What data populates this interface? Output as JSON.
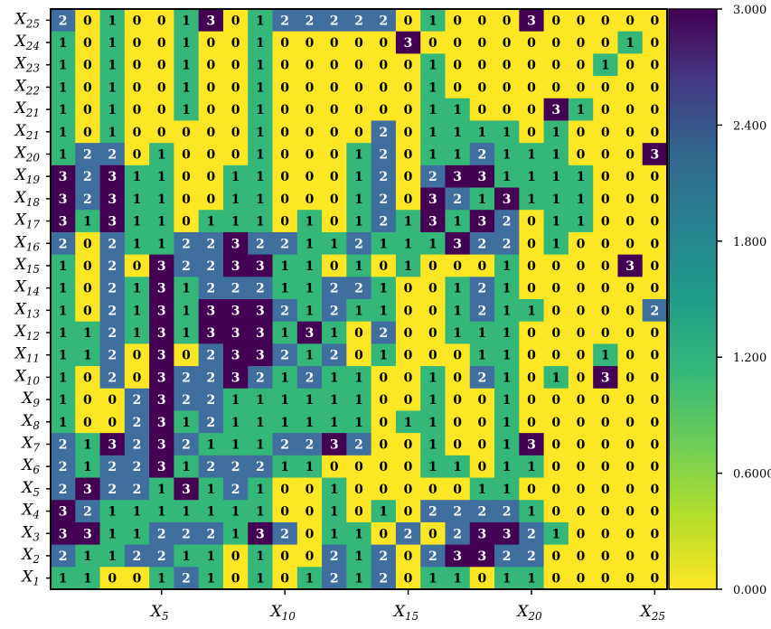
{
  "chart_data": {
    "type": "heatmap",
    "title": "",
    "xlabel": "",
    "ylabel": "",
    "rows_top_to_bottom": [
      "X25",
      "X24",
      "X23",
      "X22",
      "X21",
      "X21",
      "X20",
      "X19",
      "X18",
      "X17",
      "X16",
      "X15",
      "X14",
      "X13",
      "X12",
      "X11",
      "X10",
      "X9",
      "X8",
      "X7",
      "X6",
      "X5",
      "X4",
      "X3",
      "X2",
      "X1"
    ],
    "x_ticks": [
      {
        "col": 5,
        "label": "X5"
      },
      {
        "col": 10,
        "label": "X10"
      },
      {
        "col": 15,
        "label": "X15"
      },
      {
        "col": 20,
        "label": "X20"
      },
      {
        "col": 25,
        "label": "X25"
      }
    ],
    "values": [
      [
        2,
        0,
        1,
        0,
        0,
        1,
        3,
        0,
        1,
        2,
        2,
        2,
        2,
        2,
        0,
        1,
        0,
        0,
        0,
        3,
        0,
        0,
        0,
        0,
        0
      ],
      [
        1,
        0,
        1,
        0,
        0,
        1,
        0,
        0,
        1,
        0,
        0,
        0,
        0,
        0,
        3,
        0,
        0,
        0,
        0,
        0,
        0,
        0,
        0,
        1,
        0
      ],
      [
        1,
        0,
        1,
        0,
        0,
        1,
        0,
        0,
        1,
        0,
        0,
        0,
        0,
        0,
        0,
        1,
        0,
        0,
        0,
        0,
        0,
        0,
        1,
        0,
        0
      ],
      [
        1,
        0,
        1,
        0,
        0,
        1,
        0,
        0,
        1,
        0,
        0,
        0,
        0,
        0,
        0,
        1,
        0,
        0,
        0,
        0,
        0,
        0,
        0,
        0,
        0
      ],
      [
        1,
        0,
        1,
        0,
        0,
        1,
        0,
        0,
        1,
        0,
        0,
        0,
        0,
        0,
        0,
        1,
        1,
        0,
        0,
        0,
        3,
        1,
        0,
        0,
        0
      ],
      [
        1,
        0,
        1,
        0,
        0,
        0,
        0,
        0,
        1,
        0,
        0,
        0,
        0,
        2,
        0,
        1,
        1,
        1,
        1,
        0,
        1,
        0,
        0,
        0,
        0
      ],
      [
        1,
        2,
        2,
        0,
        1,
        0,
        0,
        0,
        1,
        0,
        0,
        0,
        1,
        2,
        0,
        1,
        1,
        2,
        1,
        1,
        1,
        0,
        0,
        0,
        3
      ],
      [
        3,
        2,
        3,
        1,
        1,
        0,
        0,
        1,
        1,
        0,
        0,
        0,
        1,
        2,
        0,
        2,
        3,
        3,
        1,
        1,
        1,
        1,
        0,
        0,
        0
      ],
      [
        3,
        2,
        3,
        1,
        1,
        0,
        0,
        1,
        1,
        0,
        0,
        0,
        1,
        2,
        0,
        3,
        2,
        1,
        3,
        1,
        1,
        1,
        0,
        0,
        0
      ],
      [
        3,
        1,
        3,
        1,
        1,
        0,
        1,
        1,
        1,
        0,
        1,
        0,
        1,
        2,
        1,
        3,
        1,
        3,
        2,
        0,
        1,
        1,
        0,
        0,
        0
      ],
      [
        2,
        0,
        2,
        1,
        1,
        2,
        2,
        3,
        2,
        2,
        1,
        1,
        2,
        1,
        1,
        1,
        3,
        2,
        2,
        0,
        1,
        0,
        0,
        0,
        0
      ],
      [
        1,
        0,
        2,
        0,
        3,
        2,
        2,
        3,
        3,
        1,
        1,
        0,
        1,
        0,
        1,
        0,
        0,
        0,
        1,
        0,
        0,
        0,
        0,
        3,
        0
      ],
      [
        1,
        0,
        2,
        1,
        3,
        1,
        2,
        2,
        2,
        1,
        1,
        2,
        2,
        1,
        0,
        0,
        1,
        2,
        1,
        0,
        0,
        0,
        0,
        0,
        0
      ],
      [
        1,
        0,
        2,
        1,
        3,
        1,
        3,
        3,
        3,
        2,
        1,
        2,
        1,
        1,
        0,
        0,
        1,
        2,
        1,
        1,
        0,
        0,
        0,
        0,
        2
      ],
      [
        1,
        1,
        2,
        1,
        3,
        1,
        3,
        3,
        3,
        1,
        3,
        1,
        0,
        2,
        0,
        0,
        1,
        1,
        1,
        0,
        0,
        0,
        0,
        0,
        0
      ],
      [
        1,
        1,
        2,
        0,
        3,
        0,
        2,
        3,
        3,
        2,
        1,
        2,
        0,
        1,
        0,
        0,
        0,
        1,
        1,
        0,
        0,
        0,
        1,
        0,
        0
      ],
      [
        1,
        0,
        2,
        0,
        3,
        2,
        2,
        3,
        2,
        1,
        2,
        1,
        1,
        0,
        0,
        1,
        0,
        2,
        1,
        0,
        1,
        0,
        3,
        0,
        0
      ],
      [
        1,
        0,
        0,
        2,
        3,
        2,
        2,
        1,
        1,
        1,
        1,
        1,
        1,
        0,
        0,
        1,
        0,
        0,
        1,
        0,
        0,
        0,
        0,
        0,
        0
      ],
      [
        1,
        0,
        0,
        2,
        3,
        1,
        2,
        1,
        1,
        1,
        1,
        1,
        1,
        0,
        1,
        1,
        0,
        0,
        1,
        0,
        0,
        0,
        0,
        0,
        0
      ],
      [
        2,
        1,
        3,
        2,
        3,
        2,
        1,
        1,
        1,
        2,
        2,
        3,
        2,
        0,
        0,
        1,
        0,
        0,
        1,
        3,
        0,
        0,
        0,
        0,
        0
      ],
      [
        2,
        1,
        2,
        2,
        3,
        1,
        2,
        2,
        2,
        1,
        1,
        0,
        0,
        0,
        0,
        1,
        1,
        0,
        1,
        1,
        0,
        0,
        0,
        0,
        0
      ],
      [
        2,
        3,
        2,
        2,
        1,
        3,
        1,
        2,
        1,
        0,
        0,
        1,
        0,
        0,
        0,
        0,
        0,
        1,
        1,
        0,
        0,
        0,
        0,
        0,
        0
      ],
      [
        3,
        2,
        1,
        1,
        1,
        1,
        1,
        1,
        1,
        0,
        0,
        1,
        0,
        1,
        0,
        2,
        2,
        2,
        2,
        1,
        0,
        0,
        0,
        0,
        0
      ],
      [
        3,
        3,
        1,
        1,
        2,
        2,
        2,
        1,
        3,
        2,
        0,
        1,
        1,
        0,
        2,
        0,
        2,
        3,
        3,
        2,
        1,
        0,
        0,
        0,
        0
      ],
      [
        2,
        1,
        1,
        2,
        2,
        1,
        1,
        0,
        1,
        0,
        0,
        2,
        1,
        2,
        0,
        2,
        3,
        3,
        2,
        2,
        0,
        0,
        0,
        0,
        0
      ],
      [
        1,
        1,
        0,
        0,
        1,
        2,
        1,
        0,
        1,
        0,
        1,
        2,
        1,
        2,
        0,
        1,
        1,
        0,
        1,
        1,
        0,
        0,
        0,
        0,
        0
      ]
    ],
    "colorbar": {
      "range": [
        0,
        3
      ],
      "tick_labels": [
        "3.000",
        "2.400",
        "1.800",
        "1.200",
        "0.6000",
        "0.000"
      ],
      "colors": {
        "0": "#fde725",
        "1": "#35b779",
        "2": "#3e6f9e",
        "3": "#440154"
      }
    },
    "cell_text_colors": {
      "0": "#000000",
      "1": "#000000",
      "2": "#ffffff",
      "3": "#ffffff"
    }
  }
}
